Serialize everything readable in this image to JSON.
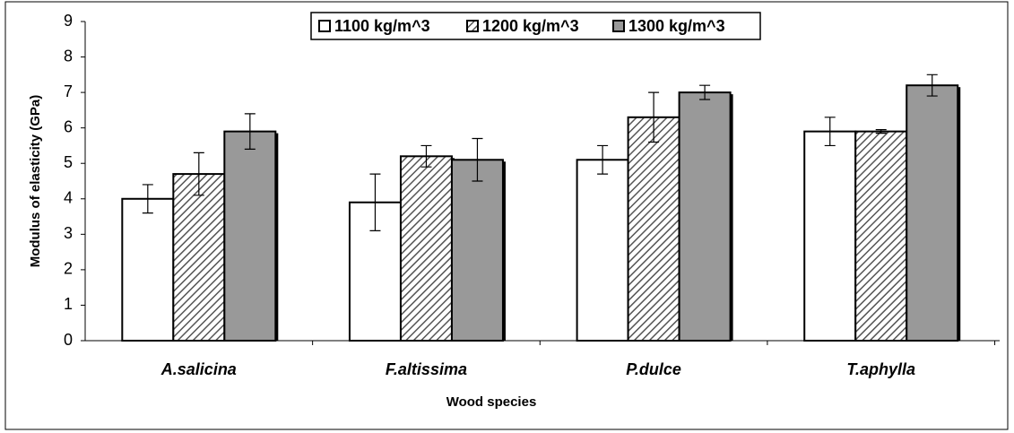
{
  "chart_data": {
    "type": "bar",
    "categories": [
      "A.salicina",
      "F.altissima",
      "P.dulce",
      "T.aphylla"
    ],
    "series": [
      {
        "name": "1100 kg/m^3",
        "color": "#ffffff",
        "pattern": "solid",
        "values": [
          4.0,
          3.9,
          5.1,
          5.9
        ],
        "errors": [
          0.4,
          0.8,
          0.4,
          0.4
        ]
      },
      {
        "name": "1200 kg/m^3",
        "color": "#ffffff",
        "pattern": "hatch",
        "values": [
          4.7,
          5.2,
          6.3,
          5.9
        ],
        "errors": [
          0.6,
          0.3,
          0.7,
          0.05
        ]
      },
      {
        "name": "1300 kg/m^3",
        "color": "#999999",
        "pattern": "solid",
        "values": [
          5.9,
          5.1,
          7.0,
          7.2
        ],
        "errors": [
          0.5,
          0.6,
          0.2,
          0.3
        ]
      }
    ],
    "xlabel": "Wood species",
    "ylabel": "Modulus of elasticity (GPa)",
    "ylim": [
      0,
      9
    ],
    "yticks": [
      0,
      1,
      2,
      3,
      4,
      5,
      6,
      7,
      8,
      9
    ],
    "legend": "top",
    "grid": false
  }
}
